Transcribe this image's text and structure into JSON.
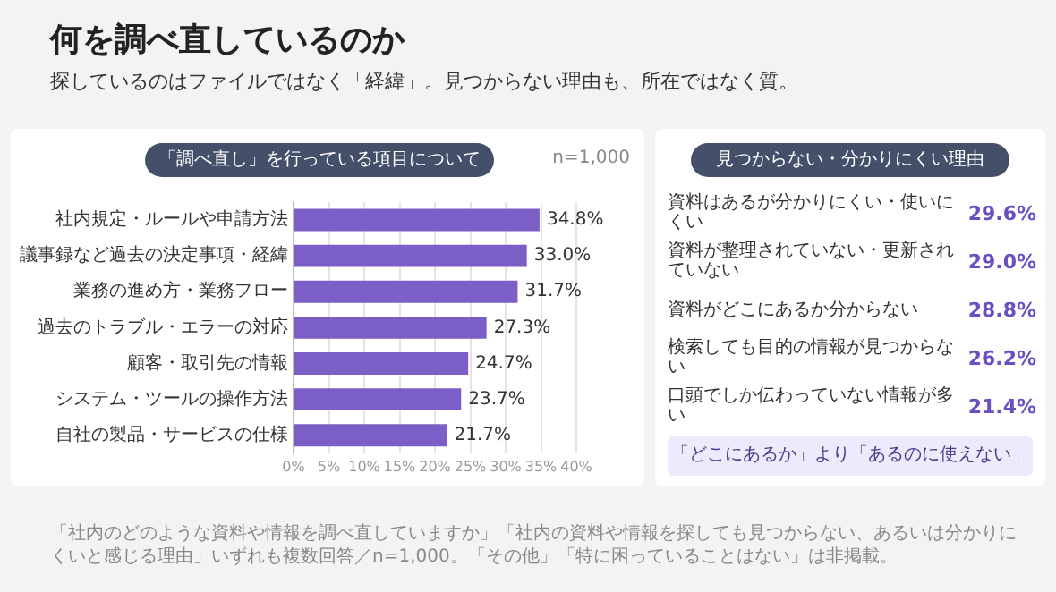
{
  "chart_data": [
    {
      "type": "bar",
      "orientation": "horizontal",
      "title": "何を調べ直しているのか",
      "subtitle": "探しているのはファイルではなく「経緯」。見つからない理由も、所在ではなく質。",
      "annotations": [
        "「調べ直し」を行っている項目について",
        "n=1,000",
        "「社内のどのような資料や情報を調べ直していますか」「社内の資料や情報を探しても見つからない、あるいは分かりにくいと感じる理由」いずれも複数回答／n=1,000。「その他」「特に困っていることはない」は非掲載。"
      ],
      "categories": [
        "社内規定・ルールや申請方法",
        "議事録など過去の決定事項・経緯",
        "業務の進め方・業務フロー",
        "過去のトラブル・エラーの対応",
        "顧客・取引先の情報",
        "システム・ツールの操作方法",
        "自社の製品・サービスの仕様"
      ],
      "values": [
        34.8,
        33.0,
        31.7,
        27.3,
        24.7,
        23.7,
        21.7
      ],
      "value_labels": [
        "34.8%",
        "33.0%",
        "31.7%",
        "27.3%",
        "24.7%",
        "23.7%",
        "21.7%"
      ],
      "color": "#7b5fc7",
      "xlim": [
        0,
        40
      ],
      "xticks": [
        {
          "value": 0,
          "label": "0%"
        },
        {
          "value": 5,
          "label": "5%"
        },
        {
          "value": 10,
          "label": "10%"
        },
        {
          "value": 15,
          "label": "15%"
        },
        {
          "value": 20,
          "label": "20%"
        },
        {
          "value": 25,
          "label": "25%"
        },
        {
          "value": 30,
          "label": "30%"
        },
        {
          "value": 35,
          "label": "35%"
        },
        {
          "value": 40,
          "label": "40%"
        }
      ],
      "grid": "x",
      "legend": false
    },
    {
      "type": "other",
      "title": "見つからない・分かりにくい理由",
      "categories": [
        "資料はあるが分かりにくい・使いにくい",
        "資料が整理されていない・更新されていない",
        "資料がどこにあるか分からない",
        "検索しても目的の情報が見つからない",
        "口頭でしか伝わっていない情報が多い"
      ],
      "values": [
        29.6,
        29.0,
        28.8,
        26.2,
        21.4
      ],
      "value_labels": [
        "29.6%",
        "29.0%",
        "28.8%",
        "26.2%",
        "21.4%"
      ],
      "annotations": [
        "「どこにあるか」より「あるのに使えない」"
      ]
    }
  ]
}
